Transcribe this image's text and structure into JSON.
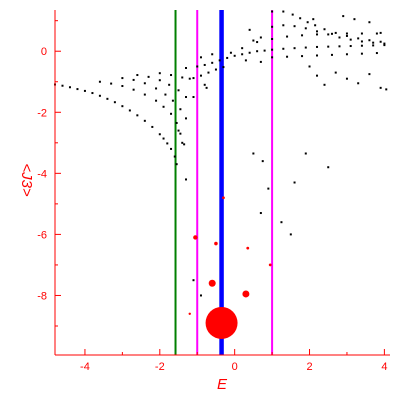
{
  "chart_data": {
    "type": "scatter",
    "title": "",
    "xlabel": "E",
    "ylabel": "<J3>",
    "xlim": [
      -4.8,
      4.15
    ],
    "ylim": [
      -9.95,
      1.35
    ],
    "x_ticks": [
      -4,
      -2,
      0,
      2,
      4
    ],
    "y_ticks": [
      -8,
      -6,
      -4,
      -2,
      0
    ],
    "x_tick_labels": [
      "-4",
      "-2",
      "0",
      "2",
      "4"
    ],
    "y_tick_labels": [
      "-8",
      "-6",
      "-4",
      "-2",
      "0"
    ],
    "grid": false,
    "legend": "none",
    "colors": {
      "axis": "#ff0000",
      "points": "#000000",
      "green_line": "#008000",
      "magenta_line": "#ff00ff",
      "blue_line": "#0000ff",
      "red_circles": "#ff0000"
    },
    "vertical_lines": [
      {
        "x": -1.58,
        "color": "#008000",
        "width": 2
      },
      {
        "x": -1.0,
        "color": "#ff00ff",
        "width": 2
      },
      {
        "x": 1.0,
        "color": "#ff00ff",
        "width": 2
      },
      {
        "x": -0.35,
        "color": "#0000ff",
        "width": 4.5
      }
    ],
    "red_circles": [
      {
        "x": -0.35,
        "y": -8.9,
        "size": 16
      },
      {
        "x": -0.6,
        "y": -7.6,
        "size": 3.5
      },
      {
        "x": 0.3,
        "y": -7.95,
        "size": 3.5
      },
      {
        "x": -1.05,
        "y": -6.1,
        "size": 2.2
      },
      {
        "x": -0.5,
        "y": -6.3,
        "size": 1.8
      },
      {
        "x": 0.35,
        "y": -6.45,
        "size": 1.4
      },
      {
        "x": -0.3,
        "y": -4.8,
        "size": 1.4
      },
      {
        "x": 0.95,
        "y": -7.0,
        "size": 1.4
      },
      {
        "x": -1.2,
        "y": -8.6,
        "size": 1.2
      }
    ],
    "scatter_points": [
      {
        "x": -4.8,
        "y": -1.09
      },
      {
        "x": -4.6,
        "y": -1.13
      },
      {
        "x": -4.4,
        "y": -1.18
      },
      {
        "x": -4.2,
        "y": -1.24
      },
      {
        "x": -4.0,
        "y": -1.3
      },
      {
        "x": -3.8,
        "y": -1.37
      },
      {
        "x": -3.6,
        "y": -1.46
      },
      {
        "x": -3.4,
        "y": -1.56
      },
      {
        "x": -3.2,
        "y": -1.67
      },
      {
        "x": -3.0,
        "y": -1.8
      },
      {
        "x": -2.8,
        "y": -1.94
      },
      {
        "x": -2.6,
        "y": -2.1
      },
      {
        "x": -2.4,
        "y": -2.28
      },
      {
        "x": -2.2,
        "y": -2.48
      },
      {
        "x": -2.0,
        "y": -2.72
      },
      {
        "x": -1.9,
        "y": -2.86
      },
      {
        "x": -1.8,
        "y": -3.02
      },
      {
        "x": -1.7,
        "y": -3.2
      },
      {
        "x": -1.6,
        "y": -3.45
      },
      {
        "x": -1.55,
        "y": -3.7
      },
      {
        "x": -3.6,
        "y": -1.0
      },
      {
        "x": -3.3,
        "y": -1.06
      },
      {
        "x": -3.0,
        "y": -1.14
      },
      {
        "x": -2.7,
        "y": -1.26
      },
      {
        "x": -2.4,
        "y": -1.42
      },
      {
        "x": -2.1,
        "y": -1.62
      },
      {
        "x": -1.9,
        "y": -1.82
      },
      {
        "x": -1.7,
        "y": -2.05
      },
      {
        "x": -1.55,
        "y": -2.35
      },
      {
        "x": -1.45,
        "y": -2.7
      },
      {
        "x": -1.35,
        "y": -3.05
      },
      {
        "x": -3.0,
        "y": -0.88
      },
      {
        "x": -2.7,
        "y": -0.94
      },
      {
        "x": -2.4,
        "y": -1.05
      },
      {
        "x": -2.1,
        "y": -1.22
      },
      {
        "x": -1.85,
        "y": -1.42
      },
      {
        "x": -1.65,
        "y": -1.62
      },
      {
        "x": -1.45,
        "y": -1.9
      },
      {
        "x": -1.3,
        "y": -2.2
      },
      {
        "x": -2.6,
        "y": -0.78
      },
      {
        "x": -2.3,
        "y": -0.84
      },
      {
        "x": -2.0,
        "y": -0.95
      },
      {
        "x": -1.75,
        "y": -1.1
      },
      {
        "x": -1.5,
        "y": -1.28
      },
      {
        "x": -1.3,
        "y": -1.5
      },
      {
        "x": -2.0,
        "y": -0.72
      },
      {
        "x": -1.7,
        "y": -0.78
      },
      {
        "x": -1.4,
        "y": -0.86
      },
      {
        "x": -1.1,
        "y": -0.88
      },
      {
        "x": -0.9,
        "y": -0.8
      },
      {
        "x": -0.7,
        "y": -0.7
      },
      {
        "x": -0.5,
        "y": -0.6
      },
      {
        "x": -0.3,
        "y": -0.52
      },
      {
        "x": -1.3,
        "y": -0.55
      },
      {
        "x": -1.0,
        "y": -0.5
      },
      {
        "x": -0.8,
        "y": -0.45
      },
      {
        "x": -0.6,
        "y": -0.38
      },
      {
        "x": -0.4,
        "y": -0.3
      },
      {
        "x": -0.2,
        "y": -0.22
      },
      {
        "x": 0.0,
        "y": -0.15
      },
      {
        "x": 0.2,
        "y": -0.1
      },
      {
        "x": 0.4,
        "y": -0.05
      },
      {
        "x": 0.6,
        "y": 0.0
      },
      {
        "x": 0.8,
        "y": 0.02
      },
      {
        "x": 1.0,
        "y": 0.05
      },
      {
        "x": 1.3,
        "y": 0.08
      },
      {
        "x": 1.6,
        "y": 0.1
      },
      {
        "x": 1.9,
        "y": 0.12
      },
      {
        "x": 2.2,
        "y": 0.14
      },
      {
        "x": 2.5,
        "y": 0.15
      },
      {
        "x": 2.8,
        "y": 0.16
      },
      {
        "x": 3.1,
        "y": 0.17
      },
      {
        "x": 3.4,
        "y": 0.18
      },
      {
        "x": 3.7,
        "y": 0.19
      },
      {
        "x": 4.0,
        "y": 0.2
      },
      {
        "x": 1.0,
        "y": -0.2
      },
      {
        "x": 1.4,
        "y": -0.18
      },
      {
        "x": 1.8,
        "y": -0.16
      },
      {
        "x": 2.2,
        "y": -0.14
      },
      {
        "x": 2.6,
        "y": -0.12
      },
      {
        "x": 3.0,
        "y": -0.1
      },
      {
        "x": 3.4,
        "y": -0.08
      },
      {
        "x": 3.8,
        "y": -0.06
      },
      {
        "x": 0.6,
        "y": 0.3
      },
      {
        "x": 1.0,
        "y": 0.4
      },
      {
        "x": 1.4,
        "y": 0.48
      },
      {
        "x": 1.8,
        "y": 0.52
      },
      {
        "x": 2.2,
        "y": 0.55
      },
      {
        "x": 2.6,
        "y": 0.57
      },
      {
        "x": 3.0,
        "y": 0.58
      },
      {
        "x": 3.4,
        "y": 0.58
      },
      {
        "x": 3.8,
        "y": 0.58
      },
      {
        "x": 1.0,
        "y": 0.8
      },
      {
        "x": 1.3,
        "y": 0.85
      },
      {
        "x": 1.6,
        "y": 0.82
      },
      {
        "x": 1.9,
        "y": 0.75
      },
      {
        "x": 2.2,
        "y": 0.65
      },
      {
        "x": 2.5,
        "y": 0.55
      },
      {
        "x": 2.8,
        "y": 0.45
      },
      {
        "x": 3.1,
        "y": 0.38
      },
      {
        "x": 3.4,
        "y": 0.32
      },
      {
        "x": 3.7,
        "y": 0.28
      },
      {
        "x": 4.0,
        "y": 0.25
      },
      {
        "x": 1.0,
        "y": 1.3
      },
      {
        "x": 1.3,
        "y": 1.3
      },
      {
        "x": 1.55,
        "y": 1.2
      },
      {
        "x": 1.75,
        "y": 1.08
      },
      {
        "x": 1.95,
        "y": 0.95
      },
      {
        "x": 2.15,
        "y": 0.85
      },
      {
        "x": 2.4,
        "y": 0.72
      },
      {
        "x": 2.7,
        "y": 0.6
      },
      {
        "x": 3.0,
        "y": 0.5
      },
      {
        "x": 3.3,
        "y": 0.42
      },
      {
        "x": 3.6,
        "y": 0.36
      },
      {
        "x": 3.9,
        "y": 0.31
      },
      {
        "x": 0.4,
        "y": 0.7
      },
      {
        "x": 0.7,
        "y": 0.45
      },
      {
        "x": 0.5,
        "y": 0.35
      },
      {
        "x": 0.2,
        "y": 0.1
      },
      {
        "x": -0.1,
        "y": -0.05
      },
      {
        "x": 0.3,
        "y": -0.3
      },
      {
        "x": 0.7,
        "y": -0.35
      },
      {
        "x": -0.6,
        "y": -0.1
      },
      {
        "x": -0.9,
        "y": -0.2
      },
      {
        "x": -1.2,
        "y": -0.9
      },
      {
        "x": -0.8,
        "y": -1.1
      },
      {
        "x": 2.9,
        "y": 1.15
      },
      {
        "x": 3.2,
        "y": 1.05
      },
      {
        "x": 3.6,
        "y": 0.95
      },
      {
        "x": 2.1,
        "y": 1.05
      },
      {
        "x": 3.9,
        "y": 0.6
      },
      {
        "x": 2.0,
        "y": -0.5
      },
      {
        "x": 2.2,
        "y": -0.8
      },
      {
        "x": 2.4,
        "y": -1.1
      },
      {
        "x": 2.7,
        "y": -0.7
      },
      {
        "x": 3.0,
        "y": -0.9
      },
      {
        "x": 3.3,
        "y": -1.05
      },
      {
        "x": 3.6,
        "y": -0.75
      },
      {
        "x": 3.9,
        "y": -1.2
      },
      {
        "x": 4.05,
        "y": -1.25
      },
      {
        "x": -1.3,
        "y": -4.2
      },
      {
        "x": -1.4,
        "y": -3.0
      },
      {
        "x": -1.5,
        "y": -2.6
      },
      {
        "x": -1.1,
        "y": -1.5
      },
      {
        "x": -0.75,
        "y": -1.2
      },
      {
        "x": 0.5,
        "y": -3.35
      },
      {
        "x": 0.75,
        "y": -3.6
      },
      {
        "x": 1.9,
        "y": -3.35
      },
      {
        "x": 1.6,
        "y": -4.3
      },
      {
        "x": 0.7,
        "y": -5.3
      },
      {
        "x": 1.5,
        "y": -6.0
      },
      {
        "x": 1.25,
        "y": -5.6
      },
      {
        "x": 0.9,
        "y": -4.5
      },
      {
        "x": 2.5,
        "y": -3.8
      },
      {
        "x": -1.1,
        "y": -7.5
      },
      {
        "x": -0.9,
        "y": -8.0
      }
    ]
  }
}
